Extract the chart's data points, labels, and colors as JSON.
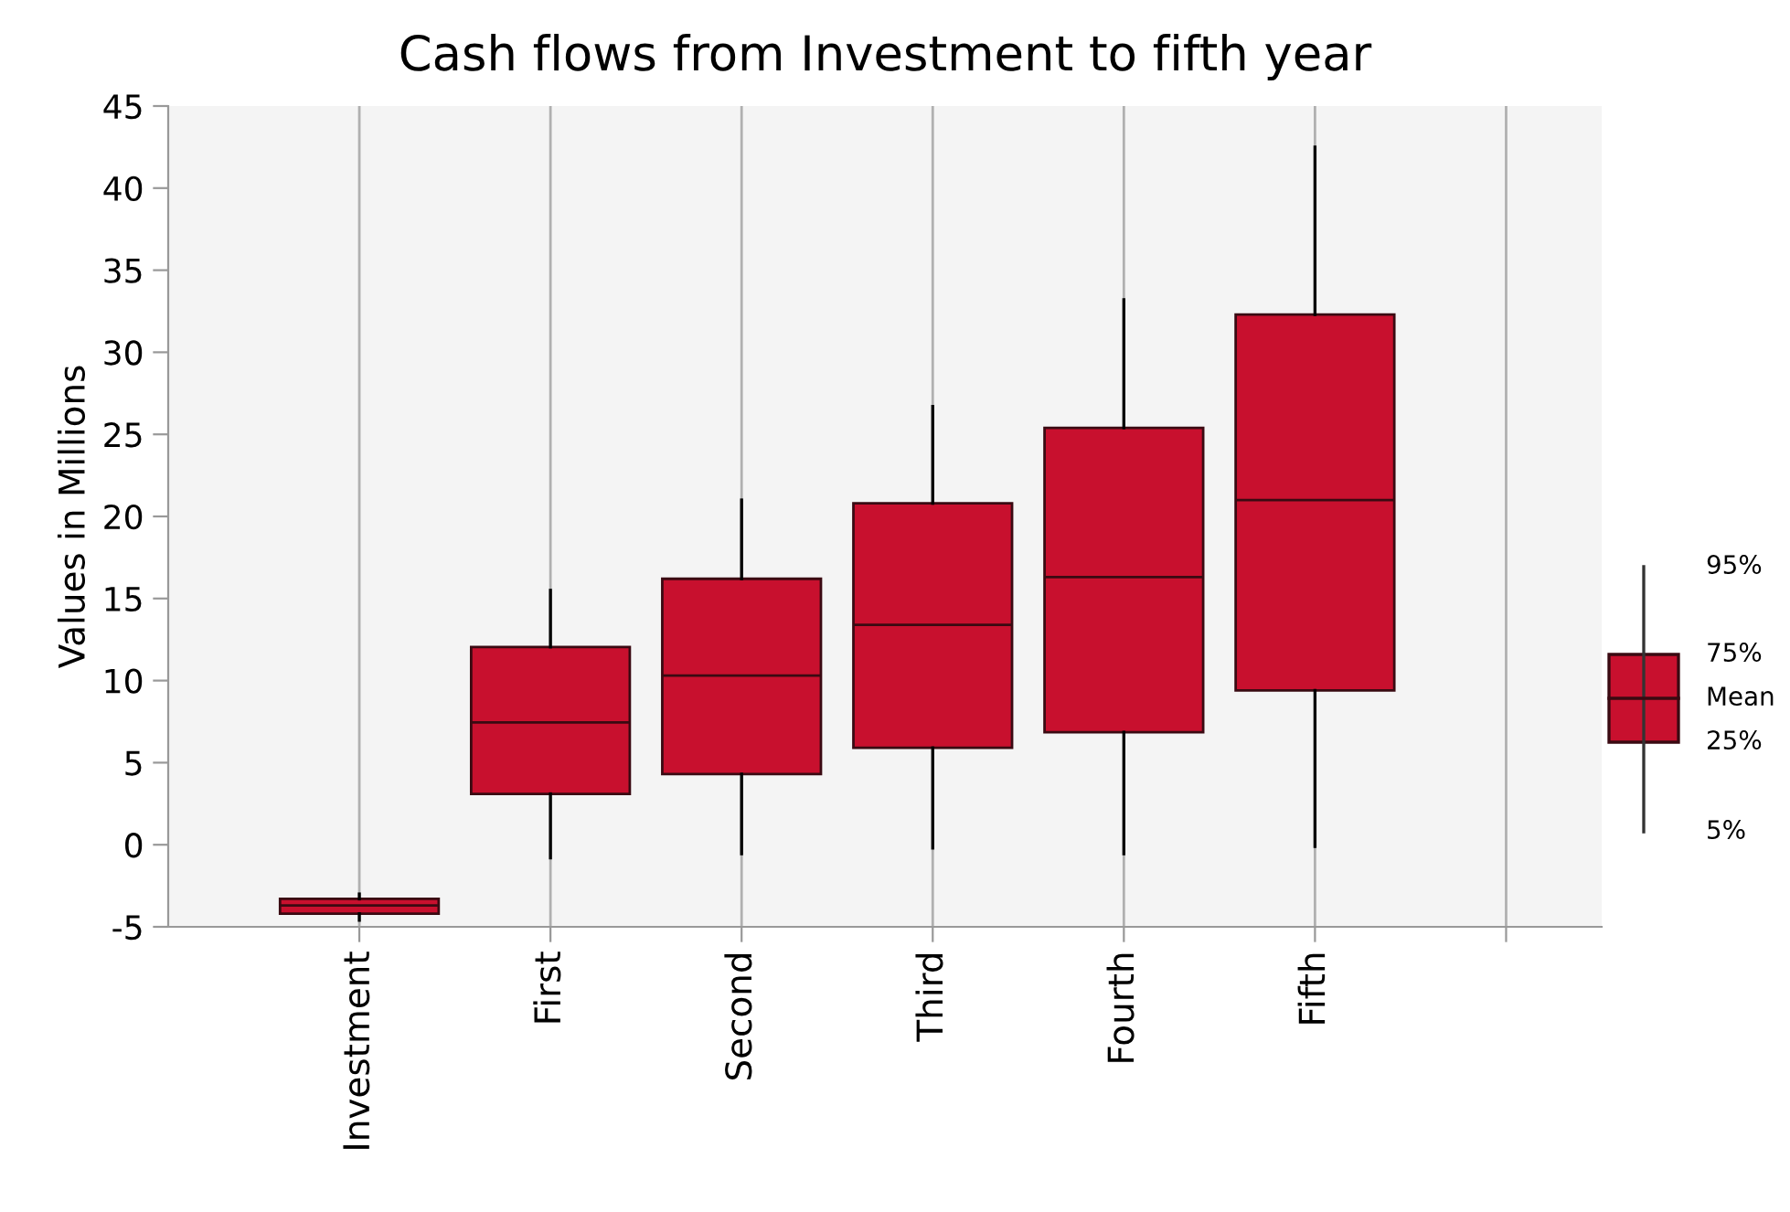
{
  "chart_data": {
    "type": "box",
    "title": "Cash flows from Investment to fifth year",
    "ylabel": "Values in Millions",
    "categories": [
      "Investment",
      "First",
      "Second",
      "Third",
      "Fourth",
      "Fifth",
      null
    ],
    "color": "#c8102e",
    "boxes": [
      {
        "low": -4.6,
        "q1": -4.2,
        "median": -3.7,
        "q3": -3.3,
        "high": -3.0
      },
      {
        "low": -0.8,
        "q1": 3.1,
        "median": 7.45,
        "q3": 12.05,
        "high": 15.5
      },
      {
        "low": -0.55,
        "q1": 4.3,
        "median": 10.3,
        "q3": 16.2,
        "high": 21.0
      },
      {
        "low": -0.2,
        "q1": 5.9,
        "median": 13.4,
        "q3": 20.8,
        "high": 26.7
      },
      {
        "low": -0.55,
        "q1": 6.85,
        "median": 16.3,
        "q3": 25.4,
        "high": 33.2
      },
      {
        "low": -0.1,
        "q1": 9.4,
        "median": 21.0,
        "q3": 32.3,
        "high": 42.5
      },
      null
    ],
    "ylim": [
      -5,
      45
    ],
    "yticks": [
      -5,
      0,
      5,
      10,
      15,
      20,
      25,
      30,
      35,
      40,
      45
    ],
    "grid": "x",
    "annotations": [
      "95%",
      "75%",
      "Mean",
      "25%",
      "5%"
    ]
  }
}
